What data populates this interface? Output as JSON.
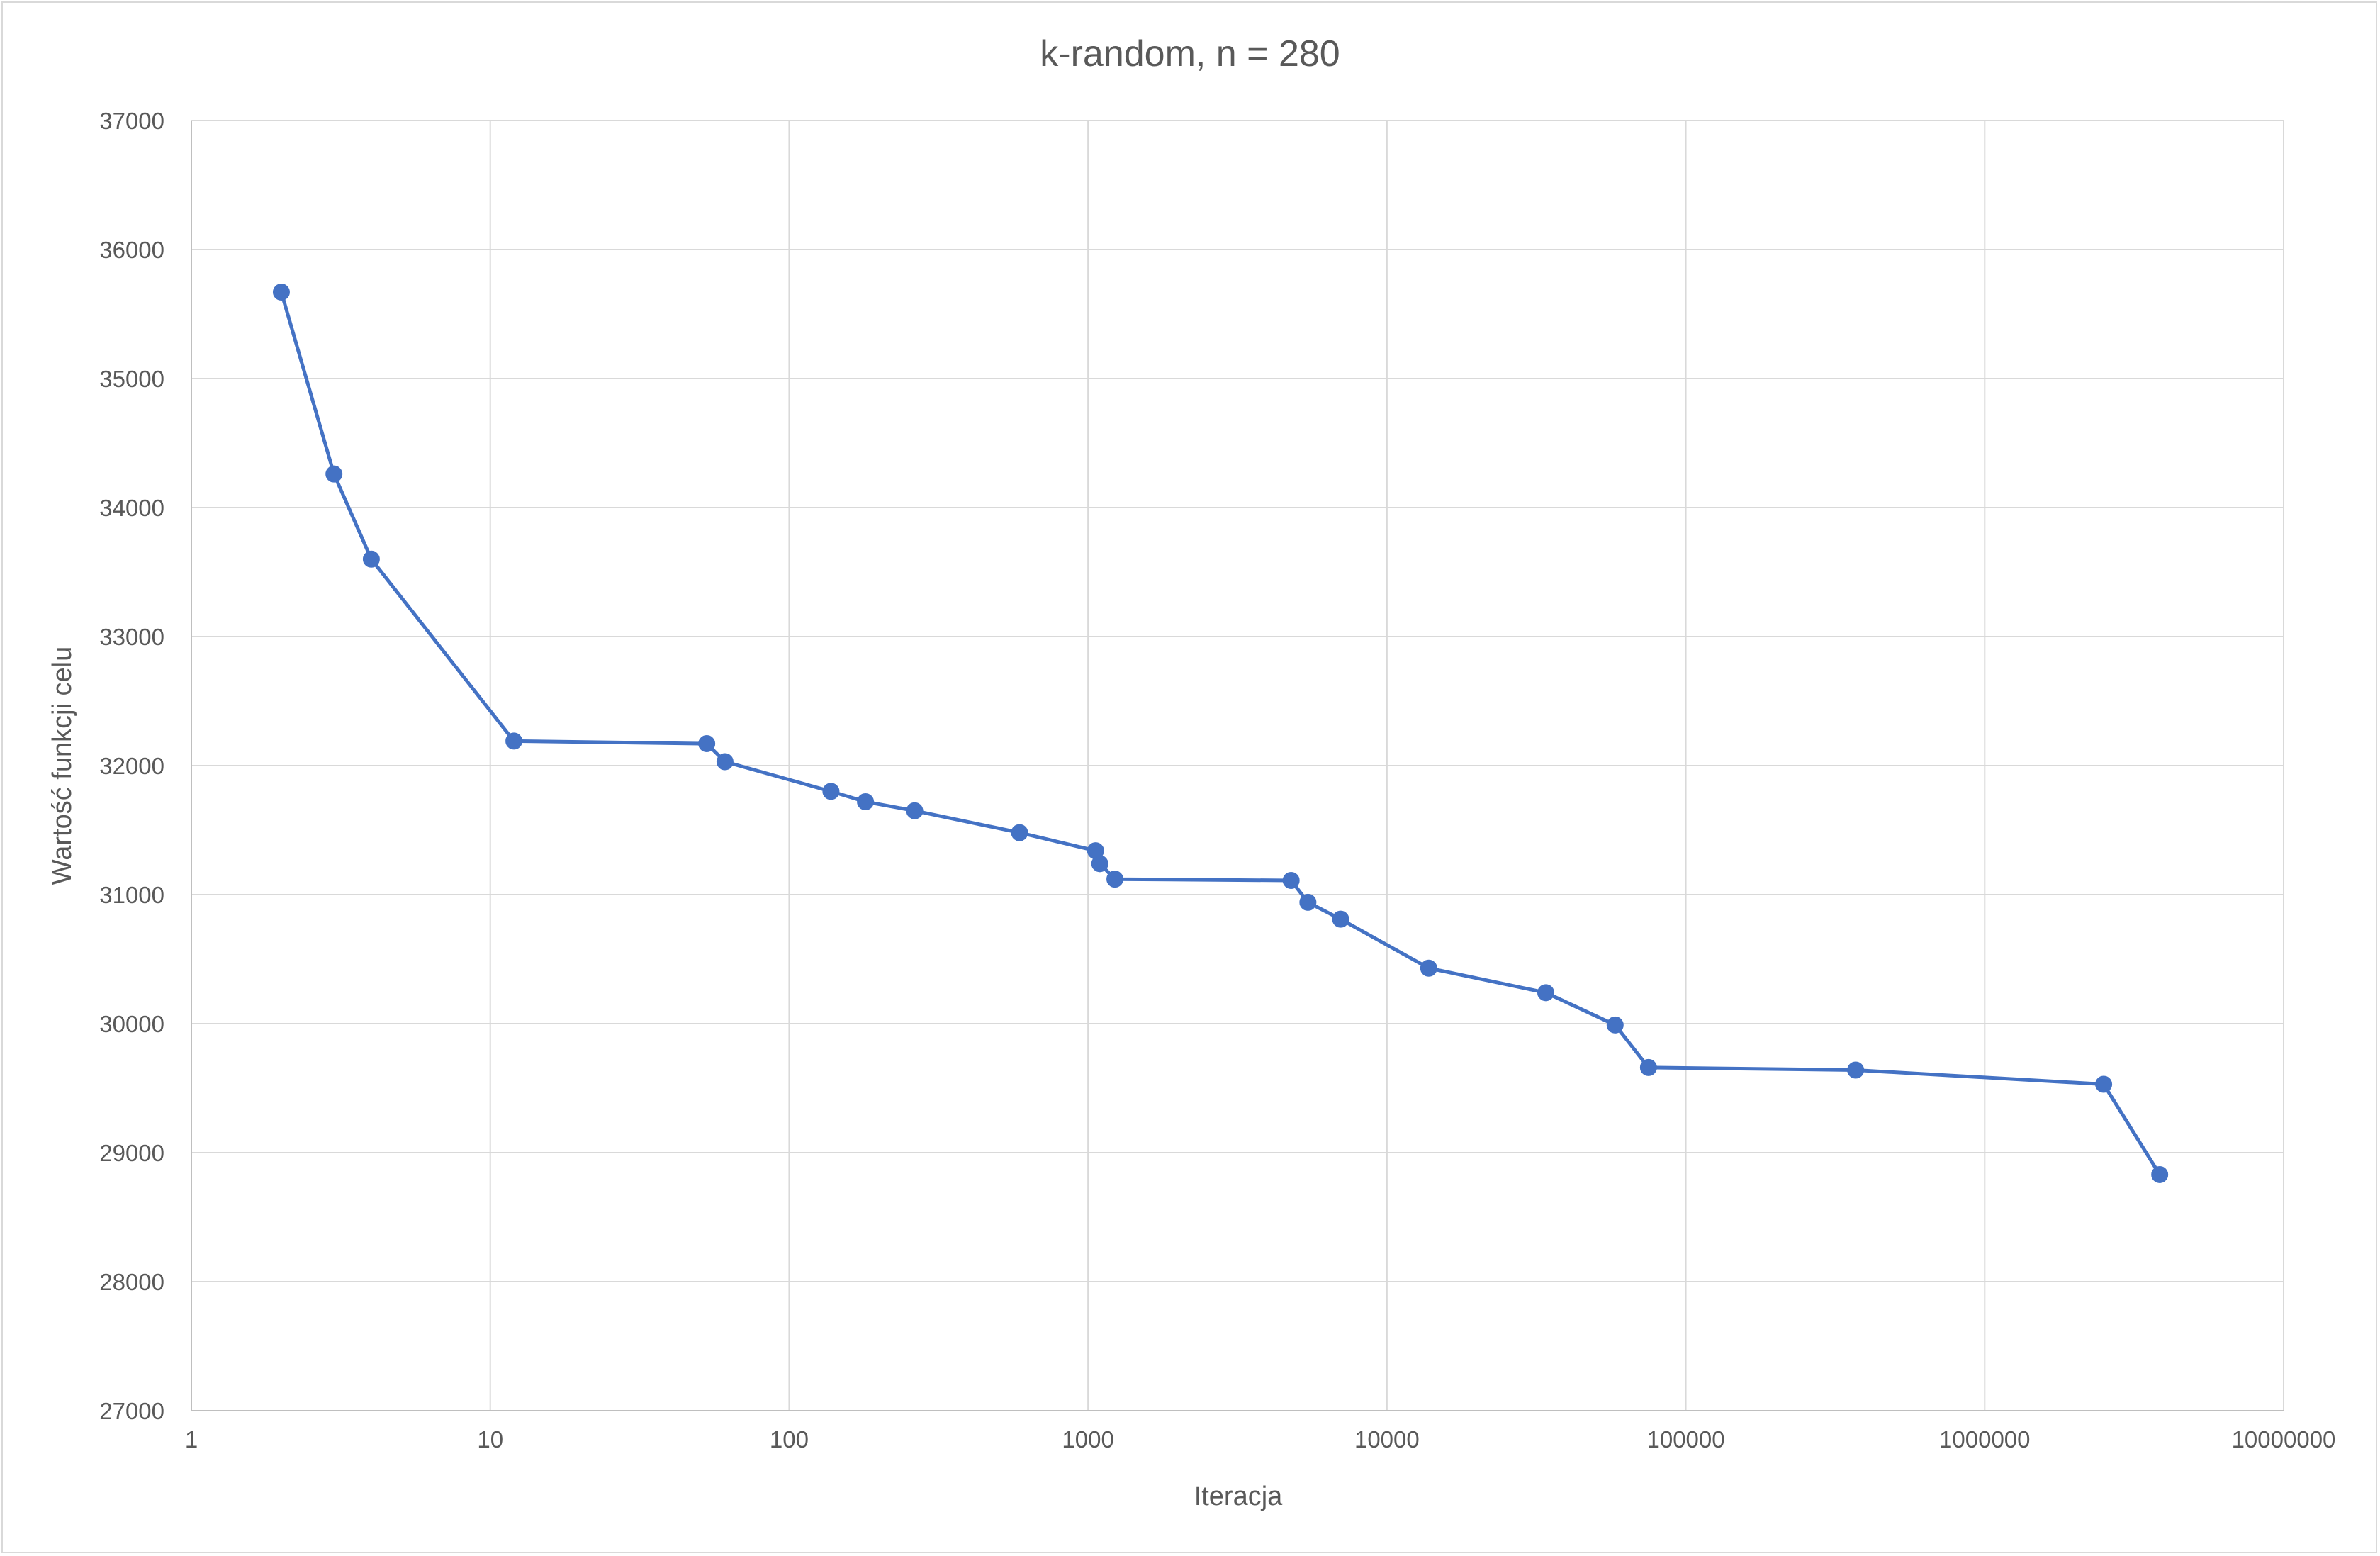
{
  "chart_data": {
    "type": "scatter",
    "title": "k-random, n = 280",
    "xlabel": "Iteracja",
    "ylabel": "Wartość funkcji celu",
    "x_scale": "log",
    "xlim": [
      1,
      10000000
    ],
    "ylim": [
      27000,
      37000
    ],
    "x_ticks": [
      "1",
      "10",
      "100",
      "1000",
      "10000",
      "100000",
      "1000000",
      "10000000"
    ],
    "y_ticks": [
      "27000",
      "28000",
      "29000",
      "30000",
      "31000",
      "32000",
      "33000",
      "34000",
      "35000",
      "36000",
      "37000"
    ],
    "grid": true,
    "series": [
      {
        "color": "#4472c4",
        "points": [
          [
            2,
            35670
          ],
          [
            3,
            34260
          ],
          [
            4,
            33600
          ],
          [
            12,
            32190
          ],
          [
            53,
            32170
          ],
          [
            61,
            32030
          ],
          [
            138,
            31800
          ],
          [
            180,
            31720
          ],
          [
            263,
            31650
          ],
          [
            590,
            31480
          ],
          [
            1060,
            31340
          ],
          [
            1095,
            31240
          ],
          [
            1230,
            31120
          ],
          [
            4780,
            31110
          ],
          [
            5440,
            30940
          ],
          [
            7000,
            30810
          ],
          [
            13800,
            30430
          ],
          [
            34000,
            30240
          ],
          [
            58000,
            29990
          ],
          [
            75000,
            29660
          ],
          [
            370000,
            29640
          ],
          [
            2500000,
            29530
          ],
          [
            3850000,
            28830
          ]
        ]
      }
    ]
  }
}
